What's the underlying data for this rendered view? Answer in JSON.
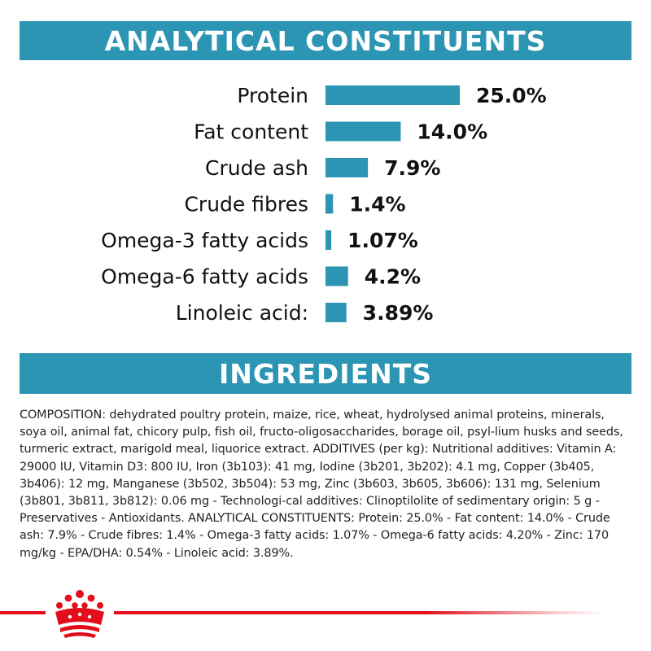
{
  "header": {
    "title": "ANALYTICAL CONSTITUENTS"
  },
  "ingredients_header": {
    "title": "INGREDIENTS"
  },
  "chart_data": {
    "type": "bar",
    "orientation": "horizontal",
    "categories": [
      "Protein",
      "Fat content",
      "Crude ash",
      "Crude fibres",
      "Omega-3 fatty acids",
      "Omega-6 fatty acids",
      "Linoleic acid:"
    ],
    "values": [
      25.0,
      14.0,
      7.9,
      1.4,
      1.07,
      4.2,
      3.89
    ],
    "value_labels": [
      "25.0%",
      "14.0%",
      "7.9%",
      "1.4%",
      "1.07%",
      "4.2%",
      "3.89%"
    ],
    "unit": "%",
    "bar_color": "#2b95b3",
    "grid": false,
    "legend": "none"
  },
  "ingredients_text": "COMPOSITION: dehydrated poultry protein, maize, rice, wheat, hydrolysed animal proteins, minerals, soya oil, animal fat, chicory pulp, fish oil, fructo-oligosaccharides, borage oil, psyl-lium husks and seeds, turmeric extract, marigold meal, liquorice extract. ADDITIVES (per kg): Nutritional additives: Vitamin A: 29000 IU, Vitamin D3: 800 IU, Iron (3b103): 41 mg, Iodine (3b201, 3b202): 4.1 mg, Copper (3b405, 3b406): 12 mg, Manganese (3b502, 3b504): 53 mg, Zinc (3b603, 3b605, 3b606): 131 mg, Selenium (3b801, 3b811, 3b812): 0.06 mg - Technologi-cal additives: Clinoptilolite of sedimentary origin: 5 g - Preservatives - Antioxidants. ANALYTICAL CONSTITUENTS: Protein: 25.0% - Fat content: 14.0% - Crude ash: 7.9% - Crude fibres: 1.4% - Omega-3 fatty acids: 1.07% - Omega-6 fatty acids: 4.20% - Zinc: 170 mg/kg - EPA/DHA: 0.54% - Linoleic acid: 3.89%.",
  "brand": {
    "accent": "#e30d1b",
    "logo": "crown-logo-icon"
  }
}
